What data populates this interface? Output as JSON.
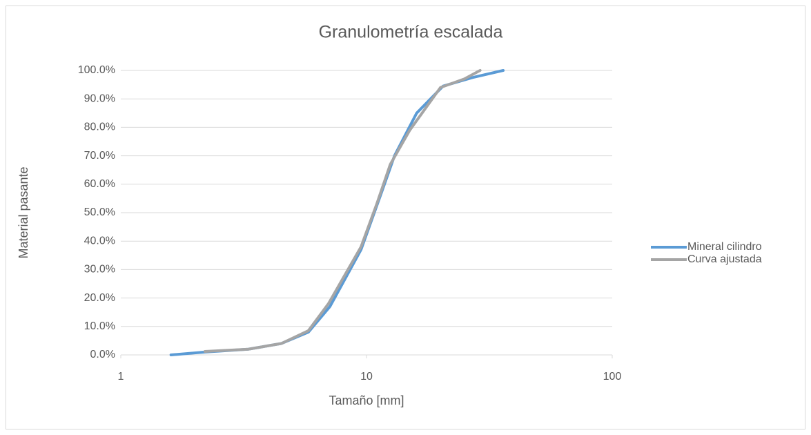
{
  "chart_data": {
    "type": "line",
    "title": "Granulometría escalada",
    "x_label": "Tamaño [mm]",
    "y_label": "Material pasante",
    "xscale": "log",
    "grid": true,
    "legend": "right",
    "xlim": [
      1,
      100
    ],
    "xticks": [
      1,
      10,
      100
    ],
    "ylim": [
      0,
      100
    ],
    "yticks": [
      {
        "value": 0,
        "label": "0.0%"
      },
      {
        "value": 10,
        "label": "10.0%"
      },
      {
        "value": 20,
        "label": "20.0%"
      },
      {
        "value": 30,
        "label": "30.0%"
      },
      {
        "value": 40,
        "label": "40.0%"
      },
      {
        "value": 50,
        "label": "50.0%"
      },
      {
        "value": 60,
        "label": "60.0%"
      },
      {
        "value": 70,
        "label": "70.0%"
      },
      {
        "value": 80,
        "label": "80.0%"
      },
      {
        "value": 90,
        "label": "90.0%"
      },
      {
        "value": 100,
        "label": "100.0%"
      }
    ],
    "series": [
      {
        "name": "Mineral cilindro",
        "color": "#5b9bd5",
        "x": [
          1.6,
          2.2,
          3.3,
          4.5,
          5.8,
          7.1,
          9.5,
          11.5,
          13,
          16,
          20.5,
          27,
          36
        ],
        "values": [
          0,
          1,
          2,
          4,
          8,
          17,
          37,
          57,
          70,
          85,
          94.5,
          97.5,
          100
        ]
      },
      {
        "name": "Curva ajustada",
        "color": "#a5a5a5",
        "x": [
          2.2,
          3.3,
          4.5,
          5.8,
          7,
          9.5,
          11,
          12.5,
          15,
          20,
          25,
          29
        ],
        "values": [
          1.2,
          2,
          4,
          8.5,
          18,
          38,
          53,
          67,
          79,
          94,
          97,
          100
        ]
      }
    ]
  }
}
